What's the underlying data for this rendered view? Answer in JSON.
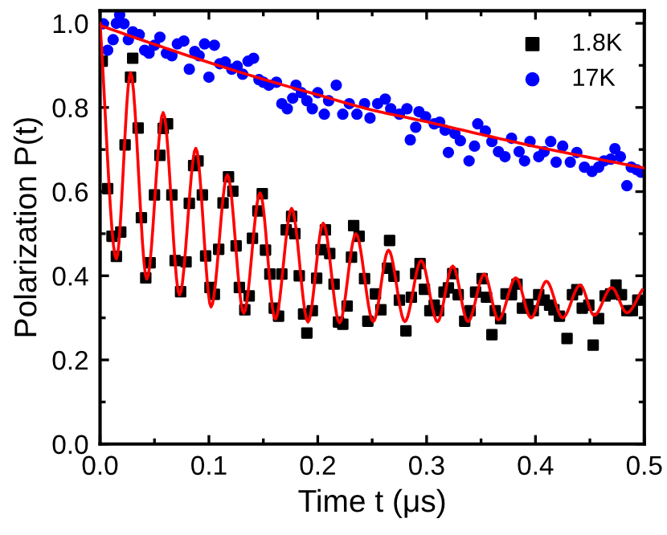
{
  "chart_data": {
    "type": "scatter",
    "xlabel": "Time t (μs)",
    "ylabel": "Polarization P(t)",
    "xlim": [
      0,
      0.5
    ],
    "ylim": [
      0,
      1.03
    ],
    "xticks": [
      {
        "value": 0,
        "label": "0.0"
      },
      {
        "value": 0.1,
        "label": "0.1"
      },
      {
        "value": 0.2,
        "label": "0.2"
      },
      {
        "value": 0.3,
        "label": "0.3"
      },
      {
        "value": 0.4,
        "label": "0.4"
      },
      {
        "value": 0.5,
        "label": "0.5"
      }
    ],
    "yticks": [
      {
        "value": 0,
        "label": "0.0"
      },
      {
        "value": 0.2,
        "label": "0.2"
      },
      {
        "value": 0.4,
        "label": "0.4"
      },
      {
        "value": 0.6,
        "label": "0.6"
      },
      {
        "value": 0.8,
        "label": "0.8"
      },
      {
        "value": 1.0,
        "label": "1.0"
      }
    ],
    "legend": "top right",
    "grid": false,
    "series": [
      {
        "name": "1.8K",
        "marker": "square",
        "color": "#000000",
        "x": [
          0.002,
          0.007,
          0.011,
          0.015,
          0.019,
          0.023,
          0.028,
          0.03,
          0.035,
          0.038,
          0.042,
          0.046,
          0.05,
          0.055,
          0.058,
          0.062,
          0.066,
          0.069,
          0.074,
          0.079,
          0.082,
          0.086,
          0.09,
          0.094,
          0.097,
          0.101,
          0.105,
          0.109,
          0.113,
          0.118,
          0.122,
          0.125,
          0.128,
          0.133,
          0.137,
          0.14,
          0.145,
          0.149,
          0.152,
          0.156,
          0.16,
          0.164,
          0.167,
          0.171,
          0.176,
          0.179,
          0.183,
          0.187,
          0.19,
          0.195,
          0.199,
          0.203,
          0.207,
          0.211,
          0.215,
          0.219,
          0.223,
          0.227,
          0.231,
          0.233,
          0.238,
          0.243,
          0.246,
          0.253,
          0.258,
          0.264,
          0.266,
          0.27,
          0.275,
          0.281,
          0.286,
          0.29,
          0.294,
          0.298,
          0.303,
          0.307,
          0.311,
          0.316,
          0.32,
          0.324,
          0.329,
          0.335,
          0.34,
          0.345,
          0.351,
          0.355,
          0.36,
          0.363,
          0.368,
          0.373,
          0.378,
          0.383,
          0.388,
          0.393,
          0.398,
          0.403,
          0.408,
          0.413,
          0.417,
          0.422,
          0.429,
          0.434,
          0.438,
          0.443,
          0.449,
          0.453,
          0.458,
          0.464,
          0.469,
          0.474,
          0.479,
          0.484,
          0.489,
          0.494
        ],
        "values": [
          0.91,
          0.607,
          0.494,
          0.446,
          0.504,
          0.711,
          0.872,
          0.917,
          0.751,
          0.538,
          0.395,
          0.431,
          0.592,
          0.686,
          0.75,
          0.761,
          0.592,
          0.436,
          0.362,
          0.433,
          0.572,
          0.662,
          0.673,
          0.592,
          0.447,
          0.372,
          0.356,
          0.463,
          0.573,
          0.635,
          0.601,
          0.471,
          0.372,
          0.319,
          0.352,
          0.489,
          0.554,
          0.595,
          0.461,
          0.404,
          0.323,
          0.304,
          0.404,
          0.509,
          0.541,
          0.5,
          0.4,
          0.309,
          0.264,
          0.317,
          0.394,
          0.462,
          0.509,
          0.453,
          0.38,
          0.29,
          0.285,
          0.328,
          0.444,
          0.519,
          0.494,
          0.393,
          0.292,
          0.357,
          0.319,
          0.418,
          0.484,
          0.399,
          0.342,
          0.269,
          0.349,
          0.405,
          0.429,
          0.368,
          0.317,
          0.33,
          0.317,
          0.361,
          0.371,
          0.405,
          0.355,
          0.292,
          0.317,
          0.361,
          0.393,
          0.349,
          0.26,
          0.317,
          0.298,
          0.357,
          0.355,
          0.38,
          0.323,
          0.332,
          0.317,
          0.355,
          0.342,
          0.33,
          0.319,
          0.304,
          0.251,
          0.355,
          0.367,
          0.323,
          0.33,
          0.235,
          0.298,
          0.352,
          0.357,
          0.378,
          0.355,
          0.317,
          0.317,
          0.342
        ]
      },
      {
        "name": "17K",
        "marker": "circle",
        "color": "#0000ff",
        "x": [
          0.003,
          0.007,
          0.012,
          0.015,
          0.018,
          0.022,
          0.026,
          0.03,
          0.036,
          0.041,
          0.045,
          0.05,
          0.055,
          0.061,
          0.066,
          0.071,
          0.077,
          0.082,
          0.087,
          0.091,
          0.096,
          0.1,
          0.105,
          0.11,
          0.115,
          0.121,
          0.126,
          0.131,
          0.136,
          0.141,
          0.146,
          0.15,
          0.155,
          0.162,
          0.167,
          0.172,
          0.177,
          0.18,
          0.185,
          0.19,
          0.195,
          0.2,
          0.206,
          0.21,
          0.217,
          0.223,
          0.229,
          0.236,
          0.243,
          0.248,
          0.255,
          0.262,
          0.267,
          0.275,
          0.282,
          0.285,
          0.29,
          0.293,
          0.299,
          0.307,
          0.312,
          0.317,
          0.32,
          0.326,
          0.331,
          0.339,
          0.344,
          0.347,
          0.354,
          0.36,
          0.366,
          0.372,
          0.378,
          0.385,
          0.39,
          0.395,
          0.403,
          0.408,
          0.414,
          0.419,
          0.425,
          0.432,
          0.438,
          0.445,
          0.452,
          0.458,
          0.463,
          0.469,
          0.473,
          0.478,
          0.484,
          0.488,
          0.493,
          0.497
        ],
        "values": [
          0.999,
          0.936,
          0.961,
          1.0,
          1.02,
          0.999,
          0.961,
          0.98,
          0.973,
          0.936,
          0.929,
          0.948,
          0.967,
          0.929,
          0.923,
          0.951,
          0.958,
          0.891,
          0.933,
          0.923,
          0.951,
          0.872,
          0.948,
          0.904,
          0.908,
          0.891,
          0.898,
          0.879,
          0.91,
          0.917,
          0.866,
          0.86,
          0.853,
          0.86,
          0.809,
          0.797,
          0.822,
          0.853,
          0.835,
          0.816,
          0.797,
          0.835,
          0.784,
          0.816,
          0.853,
          0.784,
          0.809,
          0.784,
          0.809,
          0.775,
          0.809,
          0.82,
          0.797,
          0.784,
          0.797,
          0.723,
          0.753,
          0.79,
          0.778,
          0.761,
          0.765,
          0.746,
          0.693,
          0.738,
          0.721,
          0.673,
          0.708,
          0.761,
          0.744,
          0.719,
          0.695,
          0.683,
          0.727,
          0.695,
          0.673,
          0.719,
          0.683,
          0.695,
          0.719,
          0.67,
          0.708,
          0.67,
          0.693,
          0.658,
          0.648,
          0.658,
          0.673,
          0.677,
          0.702,
          0.683,
          0.614,
          0.658,
          0.652,
          0.646
        ]
      },
      {
        "type": "line",
        "color": "#ff0000",
        "line_style": "solid",
        "x": [
          0.0,
          0.015,
          0.028,
          0.043,
          0.058,
          0.073,
          0.088,
          0.102,
          0.117,
          0.132,
          0.147,
          0.161,
          0.176,
          0.191,
          0.205,
          0.22,
          0.235,
          0.251,
          0.265,
          0.28,
          0.295,
          0.31,
          0.324,
          0.338,
          0.353,
          0.366,
          0.382,
          0.396,
          0.41,
          0.425,
          0.441,
          0.454,
          0.47,
          0.484,
          0.498
        ],
        "values": [
          1.0,
          0.44,
          0.883,
          0.392,
          0.788,
          0.354,
          0.703,
          0.326,
          0.64,
          0.311,
          0.597,
          0.297,
          0.56,
          0.29,
          0.525,
          0.288,
          0.5,
          0.291,
          0.461,
          0.291,
          0.436,
          0.291,
          0.423,
          0.291,
          0.404,
          0.295,
          0.395,
          0.3,
          0.387,
          0.3,
          0.378,
          0.306,
          0.372,
          0.312,
          0.366
        ]
      },
      {
        "type": "line",
        "color": "#ff0000",
        "line_style": "solid",
        "x": [
          0.0,
          0.05,
          0.1,
          0.15,
          0.2,
          0.25,
          0.3,
          0.35,
          0.4,
          0.45,
          0.5
        ],
        "values": [
          0.995,
          0.95,
          0.907,
          0.867,
          0.83,
          0.794,
          0.766,
          0.736,
          0.707,
          0.681,
          0.656
        ]
      }
    ]
  }
}
